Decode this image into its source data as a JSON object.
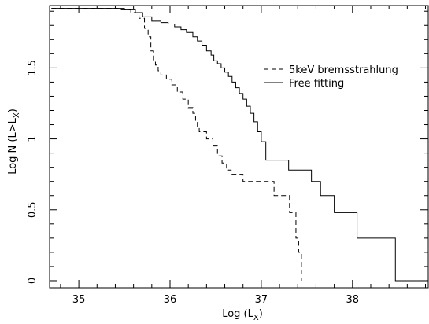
{
  "chart_data": {
    "type": "line",
    "step": true,
    "xlabel": "Log (L",
    "xlabel_sub": "X",
    "xlabel_close": ")",
    "ylabel": "Log N (L>L",
    "ylabel_sub": "X",
    "ylabel_close": ")",
    "xlim": [
      34.68,
      38.83
    ],
    "ylim": [
      -0.05,
      1.94
    ],
    "xticks": [
      35,
      36,
      37,
      38
    ],
    "xtick_labels": [
      "35",
      "36",
      "37",
      "38"
    ],
    "yticks": [
      0,
      0.5,
      1,
      1.5
    ],
    "ytick_labels": [
      "0",
      "0.5",
      "1",
      "1.5"
    ],
    "legend_position": "top-right",
    "series": [
      {
        "name": "5keV bremsstrahlung",
        "style": "dashed",
        "x": [
          34.7,
          35.43,
          35.57,
          35.66,
          35.72,
          35.76,
          35.79,
          35.82,
          35.84,
          35.87,
          35.9,
          35.96,
          36.02,
          36.08,
          36.14,
          36.2,
          36.25,
          36.28,
          36.3,
          36.32,
          36.4,
          36.47,
          36.52,
          36.57,
          36.62,
          36.67,
          36.8,
          36.94,
          37.14,
          37.22,
          37.31,
          37.38,
          37.41,
          37.44
        ],
        "y": [
          1.92,
          1.91,
          1.89,
          1.85,
          1.78,
          1.72,
          1.62,
          1.55,
          1.52,
          1.48,
          1.45,
          1.42,
          1.38,
          1.33,
          1.28,
          1.22,
          1.18,
          1.12,
          1.08,
          1.05,
          1.0,
          0.95,
          0.88,
          0.83,
          0.78,
          0.75,
          0.7,
          0.7,
          0.6,
          0.6,
          0.48,
          0.3,
          0.2,
          0.0
        ]
      },
      {
        "name": "Free fitting",
        "style": "solid",
        "x": [
          34.7,
          35.5,
          35.62,
          35.7,
          35.8,
          35.9,
          35.98,
          36.05,
          36.12,
          36.18,
          36.25,
          36.3,
          36.35,
          36.4,
          36.45,
          36.48,
          36.52,
          36.56,
          36.6,
          36.64,
          36.68,
          36.72,
          36.76,
          36.8,
          36.84,
          36.88,
          36.92,
          36.96,
          37.0,
          37.05,
          37.3,
          37.55,
          37.65,
          37.8,
          38.05,
          38.47,
          38.83
        ],
        "y": [
          1.92,
          1.91,
          1.89,
          1.86,
          1.83,
          1.82,
          1.81,
          1.79,
          1.77,
          1.75,
          1.72,
          1.69,
          1.66,
          1.62,
          1.59,
          1.55,
          1.53,
          1.5,
          1.47,
          1.44,
          1.4,
          1.36,
          1.32,
          1.28,
          1.23,
          1.18,
          1.12,
          1.05,
          0.98,
          0.85,
          0.78,
          0.7,
          0.6,
          0.48,
          0.3,
          0.0,
          0.0
        ]
      }
    ]
  }
}
